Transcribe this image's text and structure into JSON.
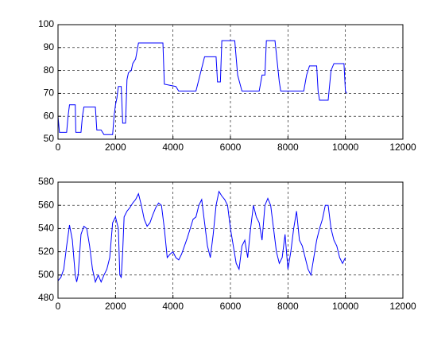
{
  "chart_data": [
    {
      "type": "line",
      "x": [
        0,
        50,
        300,
        350,
        400,
        600,
        620,
        800,
        850,
        900,
        1300,
        1350,
        1500,
        1600,
        1900,
        1950,
        2000,
        2050,
        2100,
        2200,
        2250,
        2350,
        2400,
        2450,
        2550,
        2600,
        2700,
        2800,
        3650,
        3700,
        4100,
        4200,
        4800,
        4900,
        5100,
        5500,
        5550,
        5650,
        5700,
        6150,
        6250,
        6400,
        7000,
        7100,
        7200,
        7250,
        7550,
        7700,
        7750,
        8550,
        8650,
        8750,
        9000,
        9050,
        9100,
        9400,
        9500,
        9600,
        9950,
        10000,
        10050
      ],
      "series": [
        {
          "color": "#0000ff",
          "values": [
            60,
            53,
            53,
            60,
            65,
            65,
            53,
            53,
            60,
            64,
            64,
            54,
            54,
            52,
            52,
            60,
            65,
            68,
            73,
            73,
            57,
            57,
            76,
            79,
            80,
            83,
            85,
            92,
            92,
            74,
            73,
            71,
            71,
            76,
            86,
            86,
            75,
            75,
            93,
            93,
            78,
            71,
            71,
            78,
            78,
            93,
            93,
            75,
            71,
            71,
            78,
            82,
            82,
            71,
            67,
            67,
            80,
            83,
            83,
            71,
            70
          ]
        }
      ],
      "xlim": [
        0,
        12000
      ],
      "xticks": [
        0,
        2000,
        4000,
        6000,
        8000,
        10000,
        12000
      ],
      "ylim": [
        50,
        100
      ],
      "yticks": [
        50,
        60,
        70,
        80,
        90,
        100
      ],
      "grid": true
    },
    {
      "type": "line",
      "x": [
        0,
        100,
        200,
        300,
        400,
        500,
        600,
        650,
        700,
        800,
        900,
        1000,
        1100,
        1200,
        1300,
        1400,
        1500,
        1600,
        1700,
        1800,
        1900,
        2000,
        2100,
        2150,
        2200,
        2250,
        2300,
        2400,
        2500,
        2600,
        2700,
        2800,
        2900,
        3000,
        3100,
        3200,
        3300,
        3400,
        3500,
        3600,
        3700,
        3800,
        3900,
        4000,
        4100,
        4200,
        4300,
        4400,
        4500,
        4600,
        4700,
        4800,
        4900,
        5000,
        5100,
        5200,
        5300,
        5400,
        5500,
        5600,
        5700,
        5800,
        5900,
        6000,
        6100,
        6200,
        6300,
        6400,
        6500,
        6600,
        6700,
        6800,
        6900,
        7000,
        7100,
        7200,
        7300,
        7400,
        7500,
        7600,
        7700,
        7800,
        7900,
        8000,
        8100,
        8200,
        8300,
        8400,
        8500,
        8600,
        8700,
        8800,
        8900,
        9000,
        9100,
        9200,
        9300,
        9400,
        9500,
        9600,
        9700,
        9800,
        9900,
        10000
      ],
      "series": [
        {
          "color": "#0000ff",
          "values": [
            495,
            498,
            505,
            525,
            543,
            530,
            500,
            494,
            500,
            535,
            542,
            540,
            525,
            505,
            494,
            500,
            494,
            500,
            505,
            515,
            545,
            550,
            540,
            500,
            498,
            520,
            550,
            555,
            558,
            562,
            565,
            570,
            560,
            548,
            542,
            545,
            552,
            558,
            562,
            560,
            540,
            515,
            518,
            520,
            515,
            513,
            518,
            525,
            532,
            540,
            548,
            550,
            560,
            565,
            545,
            525,
            515,
            535,
            560,
            572,
            568,
            565,
            560,
            540,
            525,
            510,
            505,
            525,
            530,
            515,
            540,
            560,
            550,
            545,
            530,
            560,
            566,
            560,
            540,
            520,
            510,
            515,
            535,
            505,
            520,
            540,
            555,
            530,
            525,
            515,
            505,
            500,
            515,
            530,
            540,
            548,
            560,
            560,
            540,
            530,
            525,
            515,
            510,
            515
          ]
        }
      ],
      "xlim": [
        0,
        12000
      ],
      "xticks": [
        0,
        2000,
        4000,
        6000,
        8000,
        10000,
        12000
      ],
      "ylim": [
        480,
        580
      ],
      "yticks": [
        480,
        500,
        520,
        540,
        560,
        580
      ],
      "grid": true
    }
  ]
}
